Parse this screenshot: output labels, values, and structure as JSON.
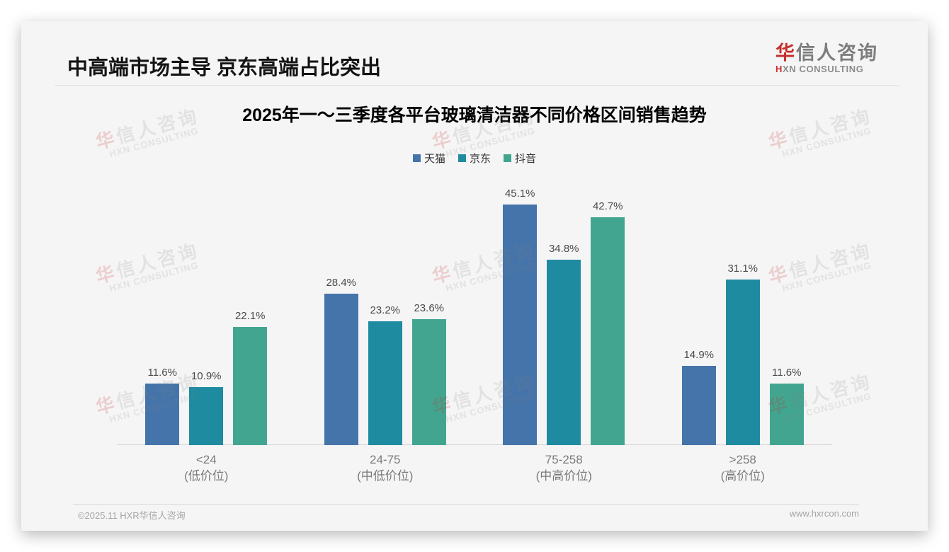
{
  "header": {
    "title": "中高端市场主导 京东高端占比突出"
  },
  "logo": {
    "cn_accent": "华",
    "cn_rest": "信人咨询",
    "en_accent": "H",
    "en_rest": "XN CONSULTING"
  },
  "watermark": {
    "cn_accent": "华",
    "cn_rest": "信人咨询",
    "en": "HXN CONSULTING"
  },
  "chart_data": {
    "type": "bar",
    "title": "2025年一～三季度各平台玻璃清洁器不同价格区间销售趋势",
    "categories": [
      {
        "range": "<24",
        "tier": "(低价位)"
      },
      {
        "range": "24-75",
        "tier": "(中低价位)"
      },
      {
        "range": "75-258",
        "tier": "(中高价位)"
      },
      {
        "range": ">258",
        "tier": "(高价位)"
      }
    ],
    "series": [
      {
        "name": "天猫",
        "color": "#4574aa",
        "values": [
          11.6,
          28.4,
          45.1,
          14.9
        ]
      },
      {
        "name": "京东",
        "color": "#1e8ba1",
        "values": [
          10.9,
          23.2,
          34.8,
          31.1
        ]
      },
      {
        "name": "抖音",
        "color": "#42a58f",
        "values": [
          22.1,
          23.6,
          42.7,
          11.6
        ]
      }
    ],
    "value_suffix": "%",
    "ylim": [
      0,
      50
    ],
    "xlabel": "",
    "ylabel": "",
    "grid": false,
    "legend_position": "top"
  },
  "footer": {
    "copyright": "©2025.11 HXR华信人咨询",
    "website": "www.hxrcon.com"
  }
}
